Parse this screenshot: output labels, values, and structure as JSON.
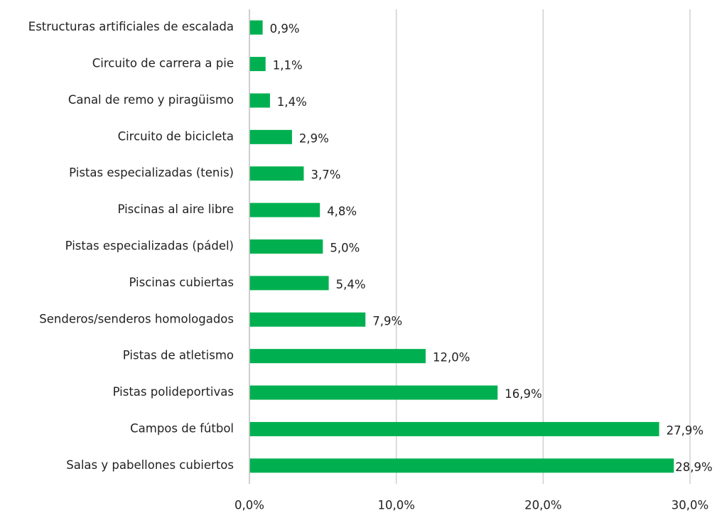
{
  "chart_data": {
    "type": "barh",
    "categories": [
      "Estructuras artificiales de escalada",
      "Circuito de carrera a pie",
      "Canal de remo y piragüismo",
      "Circuito de bicicleta",
      "Pistas especializadas (tenis)",
      "Piscinas al aire libre",
      "Pistas especializadas (pádel)",
      "Piscinas cubiertas",
      "Senderos/senderos homologados",
      "Pistas de atletismo",
      "Pistas polideportivas",
      "Campos de fútbol",
      "Salas y pabellones cubiertos"
    ],
    "values": [
      0.9,
      1.1,
      1.4,
      2.9,
      3.7,
      4.8,
      5.0,
      5.4,
      7.9,
      12.0,
      16.9,
      27.9,
      28.9
    ],
    "value_labels": [
      "0,9%",
      "1,1%",
      "1,4%",
      "2,9%",
      "3,7%",
      "4,8%",
      "5,0%",
      "5,4%",
      "7,9%",
      "12,0%",
      "16,9%",
      "27,9%",
      "28,9%"
    ],
    "color": "#00b050",
    "xlim": [
      0,
      30
    ],
    "xticks": [
      {
        "value": 0,
        "label": "0,0%"
      },
      {
        "value": 10,
        "label": "10,0%"
      },
      {
        "value": 20,
        "label": "20,0%"
      },
      {
        "value": 30,
        "label": "30,0%"
      }
    ],
    "grid": true
  }
}
